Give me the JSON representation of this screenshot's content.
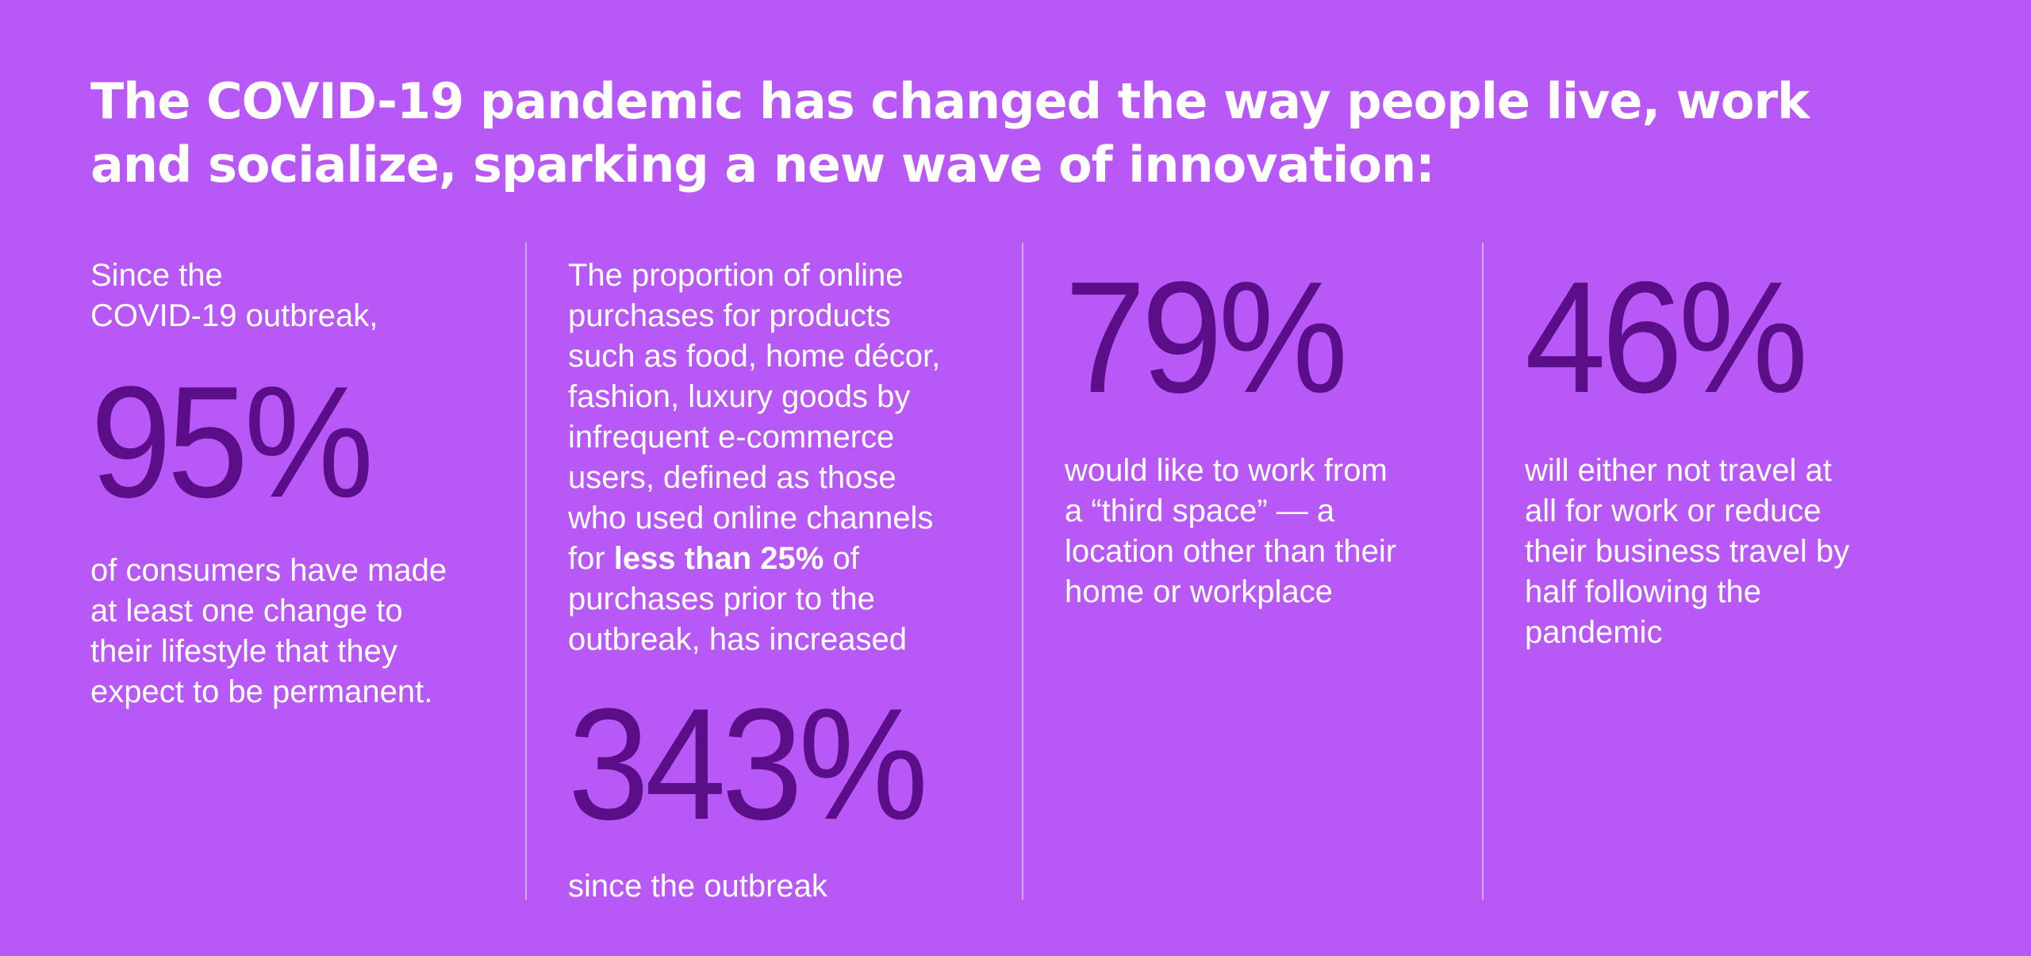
{
  "headline": {
    "line1": "The COVID-19 pandemic has changed the way people live, work",
    "line2": "and socialize, sparking a new wave of innovation:"
  },
  "colors": {
    "background": "#b859f7",
    "number": "#5a0e87",
    "text": "#ffffff",
    "divider": "#d6a6fb"
  },
  "stats": [
    {
      "intro": "Since the\nCOVID-19 outbreak,",
      "value": "95%",
      "description": "of consumers have made\nat least one change to\ntheir lifestyle that they\nexpect to be permanent."
    },
    {
      "intro_before_bold": "The proportion of online\npurchases for products\nsuch as food, home décor,\nfashion, luxury goods by\ninfrequent e-commerce\nusers, defined as those\nwho used online channels\nfor ",
      "intro_bold": "less than 25%",
      "intro_after_bold": " of\npurchases prior to the\noutbreak, has increased",
      "value": "343%",
      "description": "since the outbreak"
    },
    {
      "value": "79%",
      "description": "would like to work from\na “third space” — a\nlocation other than their\nhome or workplace"
    },
    {
      "value": "46%",
      "description": "will either not travel at\nall for work or reduce\ntheir business travel by\nhalf following the\npandemic"
    }
  ]
}
